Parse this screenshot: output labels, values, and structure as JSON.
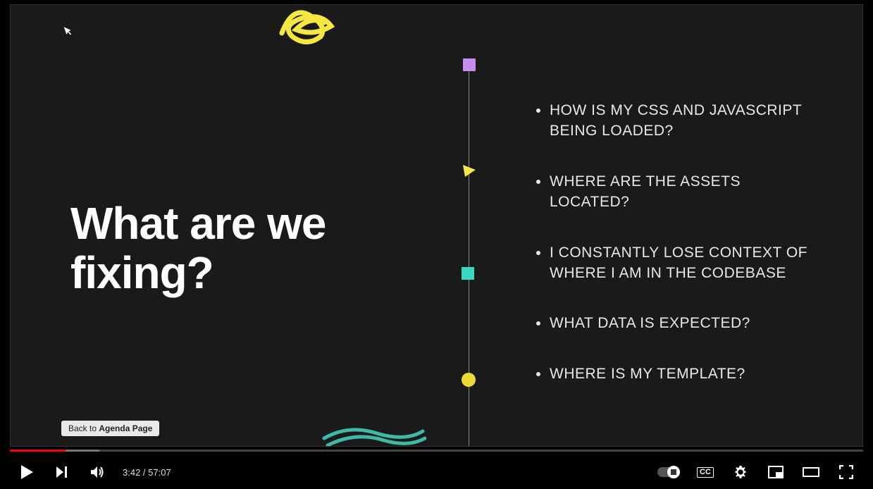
{
  "slide": {
    "background_color": "#1a1a1a",
    "heading_line1": "What are we",
    "heading_line2": "fixing?",
    "heading_color": "#ffffff",
    "heading_fontsize": 64,
    "bullets": [
      "HOW IS MY CSS AND JAVASCRIPT BEING LOADED?",
      "WHERE ARE THE ASSETS LOCATED?",
      "I CONSTANTLY LOSE CONTEXT OF WHERE I AM IN THE CODEBASE",
      "WHAT DATA IS EXPECTED?",
      "WHERE IS MY TEMPLATE?"
    ],
    "bullet_color": "#e8e8e8",
    "bullet_fontsize": 21,
    "timeline_color": "#888888",
    "shapes": {
      "purple_square_color": "#c78cf0",
      "yellow_triangle_color": "#f7e84a",
      "teal_square_color": "#38d9c0",
      "yellow_circle_color": "#eed936",
      "scribble_top_color": "#f5e742",
      "scribble_bottom_color": "#3fb8a8"
    },
    "back_button_prefix": "Back to ",
    "back_button_bold": "Agenda Page"
  },
  "player": {
    "current_time": "3:42",
    "total_time": "57:07",
    "time_separator": " / ",
    "progress_played_percent": 6.5,
    "progress_loaded_percent": 10.5,
    "progress_played_color": "#ff0000",
    "progress_loaded_color": "#777777",
    "track_color": "#444444",
    "cc_label": "CC",
    "icons": {
      "play": "play-icon",
      "next": "next-icon",
      "volume": "volume-icon",
      "autoplay": "autoplay-toggle",
      "captions": "captions-icon",
      "settings": "gear-icon",
      "miniplayer": "miniplayer-icon",
      "theater": "theater-icon",
      "fullscreen": "fullscreen-icon"
    }
  }
}
